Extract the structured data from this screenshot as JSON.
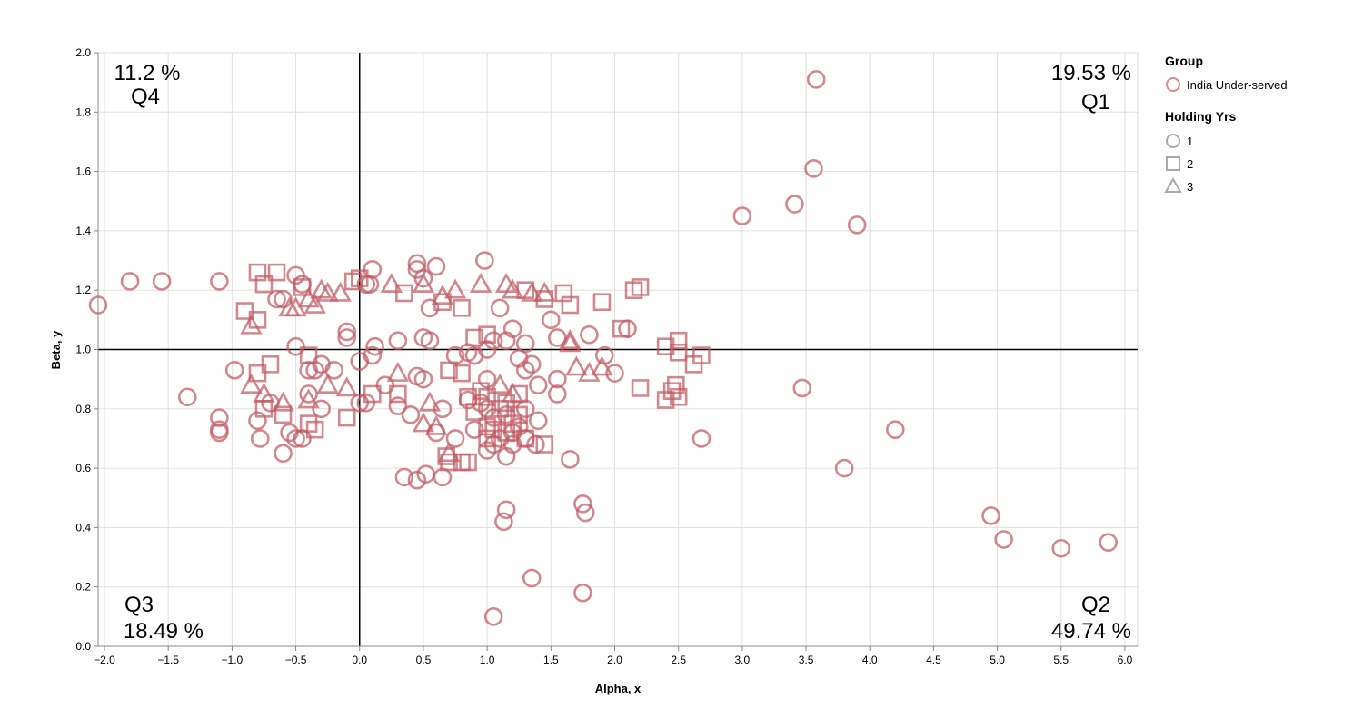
{
  "chart_data": {
    "type": "scatter",
    "xlabel": "Alpha, x",
    "ylabel": "Beta, y",
    "xlim": [
      -2.05,
      6.1
    ],
    "ylim": [
      0,
      2.0
    ],
    "xticks": [
      "−2.0",
      "−1.5",
      "−1.0",
      "−0.5",
      "0.0",
      "0.5",
      "1.0",
      "1.5",
      "2.0",
      "2.5",
      "3.0",
      "3.5",
      "4.0",
      "4.5",
      "5.0",
      "5.5",
      "6.0"
    ],
    "xtick_values": [
      -2,
      -1.5,
      -1,
      -0.5,
      0,
      0.5,
      1,
      1.5,
      2,
      2.5,
      3,
      3.5,
      4,
      4.5,
      5,
      5.5,
      6
    ],
    "yticks": [
      "0.0",
      "0.2",
      "0.4",
      "0.6",
      "0.8",
      "1.0",
      "1.2",
      "1.4",
      "1.6",
      "1.8",
      "2.0"
    ],
    "ytick_values": [
      0,
      0.2,
      0.4,
      0.6,
      0.8,
      1.0,
      1.2,
      1.4,
      1.6,
      1.8,
      2.0
    ],
    "grid": true,
    "reference_lines": {
      "x": 0,
      "y": 1.0
    },
    "quadrants": [
      {
        "name": "Q4",
        "pct": "11.2 %",
        "position": "top-left"
      },
      {
        "name": "Q1",
        "pct": "19.53 %",
        "position": "top-right"
      },
      {
        "name": "Q3",
        "pct": "18.49 %",
        "position": "bottom-left"
      },
      {
        "name": "Q2",
        "pct": "49.74 %",
        "position": "bottom-right"
      }
    ],
    "color": "#c25a62",
    "legend": {
      "placement": "right",
      "group_title": "Group",
      "group_items": [
        "India Under-served"
      ],
      "shape_title": "Holding Yrs",
      "shape_items": [
        {
          "label": "1",
          "shape": "circle"
        },
        {
          "label": "2",
          "shape": "square"
        },
        {
          "label": "3",
          "shape": "triangle"
        }
      ]
    },
    "series": [
      {
        "name": "1",
        "shape": "circle",
        "points": [
          [
            -2.05,
            1.15
          ],
          [
            -1.8,
            1.23
          ],
          [
            -1.55,
            1.23
          ],
          [
            -1.1,
            1.23
          ],
          [
            -1.35,
            0.84
          ],
          [
            -1.1,
            0.77
          ],
          [
            -1.1,
            0.73
          ],
          [
            -1.1,
            0.72
          ],
          [
            -0.98,
            0.93
          ],
          [
            3.58,
            1.91
          ],
          [
            3.56,
            1.61
          ],
          [
            3.0,
            1.45
          ],
          [
            3.41,
            1.49
          ],
          [
            3.9,
            1.42
          ],
          [
            3.47,
            0.87
          ],
          [
            4.2,
            0.73
          ],
          [
            3.8,
            0.6
          ],
          [
            4.95,
            0.44
          ],
          [
            5.05,
            0.36
          ],
          [
            5.5,
            0.33
          ],
          [
            5.87,
            0.35
          ],
          [
            2.68,
            0.7
          ],
          [
            1.65,
            0.63
          ],
          [
            1.75,
            0.48
          ],
          [
            1.77,
            0.45
          ],
          [
            1.15,
            0.46
          ],
          [
            1.13,
            0.42
          ],
          [
            1.35,
            0.23
          ],
          [
            1.75,
            0.18
          ],
          [
            1.05,
            0.1
          ],
          [
            0.35,
            0.57
          ],
          [
            0.45,
            0.56
          ],
          [
            0.52,
            0.58
          ],
          [
            0.65,
            0.57
          ],
          [
            0.98,
            1.3
          ],
          [
            0.45,
            1.29
          ],
          [
            0.6,
            1.28
          ],
          [
            0.1,
            1.27
          ],
          [
            2.1,
            1.07
          ],
          [
            1.92,
            0.98
          ],
          [
            2.0,
            0.92
          ],
          [
            1.8,
            1.05
          ],
          [
            -0.6,
            0.65
          ],
          [
            -0.55,
            0.72
          ],
          [
            -0.5,
            0.7
          ],
          [
            -0.45,
            0.7
          ],
          [
            -0.8,
            0.76
          ],
          [
            -0.78,
            0.7
          ],
          [
            -0.5,
            1.01
          ],
          [
            -0.3,
            0.95
          ],
          [
            -0.4,
            0.93
          ],
          [
            -0.35,
            0.93
          ],
          [
            -0.1,
            1.06
          ],
          [
            -0.1,
            1.04
          ],
          [
            0.12,
            1.01
          ],
          [
            0.1,
            0.98
          ],
          [
            0.0,
            0.96
          ],
          [
            0.0,
            0.82
          ],
          [
            0.05,
            0.82
          ],
          [
            0.3,
            0.81
          ],
          [
            0.4,
            0.78
          ],
          [
            -0.5,
            1.25
          ],
          [
            -0.45,
            1.22
          ],
          [
            -0.6,
            1.17
          ],
          [
            0.05,
            1.22
          ],
          [
            0.08,
            1.22
          ],
          [
            0.45,
            1.27
          ],
          [
            0.5,
            1.24
          ],
          [
            0.3,
            1.03
          ],
          [
            0.5,
            1.04
          ],
          [
            0.55,
            1.03
          ],
          [
            0.5,
            0.9
          ],
          [
            0.2,
            0.88
          ],
          [
            0.45,
            0.91
          ],
          [
            0.85,
            0.99
          ],
          [
            1.0,
            1.0
          ],
          [
            1.05,
            1.03
          ],
          [
            1.15,
            1.03
          ],
          [
            1.2,
            1.07
          ],
          [
            1.1,
            1.14
          ],
          [
            0.55,
            1.14
          ],
          [
            1.3,
            1.02
          ],
          [
            1.5,
            1.1
          ],
          [
            1.55,
            1.04
          ],
          [
            1.55,
            0.9
          ],
          [
            1.55,
            0.85
          ],
          [
            1.35,
            0.95
          ],
          [
            1.4,
            0.88
          ],
          [
            1.25,
            0.97
          ],
          [
            1.3,
            0.93
          ],
          [
            1.0,
            0.9
          ],
          [
            1.4,
            0.76
          ],
          [
            1.38,
            0.68
          ],
          [
            1.2,
            0.72
          ],
          [
            1.1,
            0.7
          ],
          [
            1.05,
            0.68
          ],
          [
            0.9,
            0.73
          ],
          [
            0.75,
            0.7
          ],
          [
            1.25,
            0.74
          ],
          [
            1.15,
            0.78
          ],
          [
            1.0,
            0.8
          ],
          [
            0.95,
            0.82
          ],
          [
            1.05,
            0.77
          ],
          [
            1.3,
            0.8
          ],
          [
            0.85,
            0.83
          ],
          [
            1.3,
            0.7
          ],
          [
            1.2,
            0.68
          ],
          [
            0.65,
            0.8
          ],
          [
            0.6,
            0.72
          ],
          [
            1.15,
            0.64
          ],
          [
            1.0,
            0.66
          ],
          [
            0.9,
            0.98
          ],
          [
            0.75,
            0.98
          ],
          [
            -0.65,
            1.17
          ],
          [
            -0.2,
            0.93
          ],
          [
            -0.7,
            0.82
          ],
          [
            -0.3,
            0.8
          ],
          [
            -0.4,
            0.85
          ]
        ]
      },
      {
        "name": "2",
        "shape": "square",
        "points": [
          [
            2.15,
            1.2
          ],
          [
            2.2,
            1.21
          ],
          [
            1.9,
            1.16
          ],
          [
            2.05,
            1.07
          ],
          [
            2.4,
            1.01
          ],
          [
            2.5,
            1.03
          ],
          [
            2.5,
            0.99
          ],
          [
            2.68,
            0.98
          ],
          [
            2.62,
            0.95
          ],
          [
            2.4,
            0.83
          ],
          [
            2.45,
            0.86
          ],
          [
            2.5,
            0.84
          ],
          [
            2.48,
            0.88
          ],
          [
            2.2,
            0.87
          ],
          [
            1.45,
            1.17
          ],
          [
            1.6,
            1.19
          ],
          [
            1.65,
            1.15
          ],
          [
            1.3,
            1.2
          ],
          [
            0.8,
            1.14
          ],
          [
            0.9,
            1.04
          ],
          [
            1.0,
            1.05
          ],
          [
            0.7,
            0.93
          ],
          [
            0.8,
            0.92
          ],
          [
            1.45,
            0.68
          ],
          [
            0.7,
            0.62
          ],
          [
            0.8,
            0.62
          ],
          [
            0.85,
            0.62
          ],
          [
            0.68,
            0.64
          ],
          [
            -0.8,
            1.26
          ],
          [
            -0.65,
            1.26
          ],
          [
            -0.75,
            1.22
          ],
          [
            -0.9,
            1.13
          ],
          [
            -0.8,
            1.1
          ],
          [
            -0.45,
            1.21
          ],
          [
            -0.05,
            1.23
          ],
          [
            0.0,
            1.24
          ],
          [
            -0.8,
            0.92
          ],
          [
            -0.7,
            0.95
          ],
          [
            -0.4,
            0.98
          ],
          [
            -0.75,
            0.8
          ],
          [
            -0.6,
            0.78
          ],
          [
            -0.4,
            0.75
          ],
          [
            -0.35,
            0.73
          ],
          [
            -0.1,
            0.77
          ],
          [
            0.1,
            0.85
          ],
          [
            0.3,
            0.85
          ],
          [
            0.35,
            1.19
          ],
          [
            0.65,
            1.16
          ],
          [
            1.0,
            0.84
          ],
          [
            1.1,
            0.8
          ],
          [
            1.2,
            0.75
          ],
          [
            1.25,
            0.78
          ],
          [
            1.05,
            0.73
          ],
          [
            0.95,
            0.86
          ],
          [
            1.15,
            0.72
          ],
          [
            1.3,
            0.7
          ],
          [
            1.0,
            0.7
          ],
          [
            1.25,
            0.85
          ],
          [
            0.9,
            0.79
          ],
          [
            0.85,
            0.84
          ],
          [
            1.0,
            0.74
          ],
          [
            1.15,
            0.82
          ]
        ]
      },
      {
        "name": "3",
        "shape": "triangle",
        "points": [
          [
            -0.85,
            1.08
          ],
          [
            -0.85,
            0.88
          ],
          [
            -0.75,
            0.85
          ],
          [
            -0.55,
            1.14
          ],
          [
            -0.5,
            1.14
          ],
          [
            -0.35,
            1.15
          ],
          [
            -0.25,
            1.19
          ],
          [
            -0.15,
            1.19
          ],
          [
            -0.3,
            1.2
          ],
          [
            -0.4,
            1.17
          ],
          [
            0.25,
            1.22
          ],
          [
            0.5,
            1.22
          ],
          [
            0.65,
            1.18
          ],
          [
            0.75,
            1.2
          ],
          [
            0.95,
            1.22
          ],
          [
            1.15,
            1.22
          ],
          [
            1.35,
            1.19
          ],
          [
            1.45,
            1.19
          ],
          [
            1.2,
            1.2
          ],
          [
            1.65,
            1.02
          ],
          [
            1.65,
            1.03
          ],
          [
            1.7,
            0.94
          ],
          [
            1.8,
            0.92
          ],
          [
            1.9,
            0.94
          ],
          [
            -0.25,
            0.88
          ],
          [
            -0.1,
            0.87
          ],
          [
            0.3,
            0.92
          ],
          [
            0.55,
            0.82
          ],
          [
            0.5,
            0.75
          ],
          [
            0.6,
            0.74
          ],
          [
            0.7,
            0.65
          ],
          [
            1.1,
            0.88
          ],
          [
            1.2,
            0.85
          ],
          [
            -0.6,
            0.82
          ],
          [
            -0.4,
            0.83
          ]
        ]
      }
    ]
  }
}
